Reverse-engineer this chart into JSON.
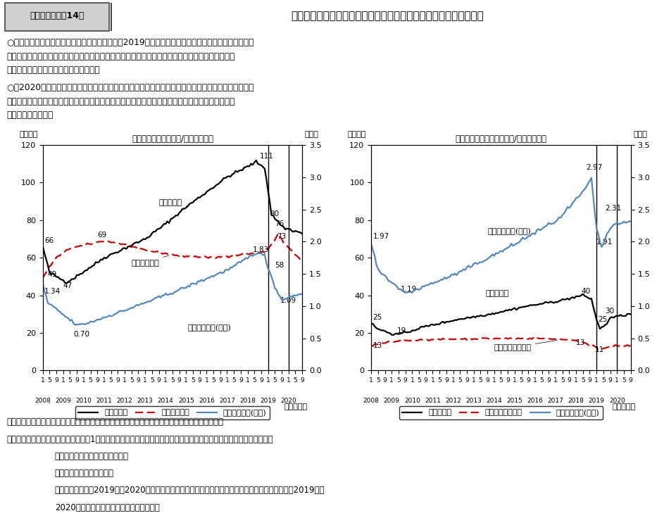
{
  "title_box": "第１－（２）－14図",
  "title_main": "雇用形態別にみた求人・求職に関する指標の動向（パートタイム）",
  "text1_line1": "○　パートタイムの求人・求職の動向をみると、2019年には、有効求人数、新規求人数は減少傾向に",
  "text1_line2": "あった一方で、有効求職者数は前年比で増加、新規求職申込件数は減少となった結果、有効求人倍",
  "text1_line3": "率、新規求人倍率はいずれも低下した。",
  "text2_line1": "○　2020年には、有効求人数、新規求人数ともに大きく減少した。他方で、有効求職者数は年平均で",
  "text2_line2": "増加幅が拡大した一方、新規求職申込件数は減少した結果、有効求人倍率、新規求人倍率はいずれ",
  "text2_line3": "も大幅に低下した。",
  "left_title": "有効求職者数・求人数/有効求人倍率",
  "right_title": "新規求職申込件数・求人数/新規求人倍率",
  "man_label": "（万人）",
  "bai_label": "（倍）",
  "nen_label": "（年・月）",
  "source_line": "資料出所　厚生労働省「職業安定業務統計」をもとに厚生労働省政策統括官付政策統括室にて作成",
  "note_head": "（注）",
  "note1a": "１）「パートタイム」とは、1週間の所定労働時間が同一の事業所に雇用されている通常の労働者の１週間の所",
  "note1b": "定労働時間に比し短い者を指す。",
  "note2": "２）データは季節調整値。",
  "note3a": "３）本白書では、2019年～2020年の労働経済の動向を中心に分析を行うため、見やすさの観点から2019年と",
  "note3b": "2020年の年の区切りに実線を入れている。",
  "left_legend": [
    "有効求人数",
    "有効求職者数",
    "有効求人倍率(右軸)"
  ],
  "right_legend": [
    "新規求人数",
    "新規求職申込件数",
    "新規求人倍率(右軸)"
  ],
  "left_inline1": "有効求人数",
  "left_inline2": "有効求職者数",
  "left_inline3": "有効求人倍率(右軸)",
  "right_inline1": "新規求人倍率(右軸)",
  "right_inline2": "新規求人数",
  "right_inline3": "新規求職申込件数",
  "line1_color": "#000000",
  "line2_color": "#cc0000",
  "line3_color": "#5588bb",
  "bg_color": "#ffffff",
  "title_bg": "#d0d0d0",
  "title_border": "#444444"
}
